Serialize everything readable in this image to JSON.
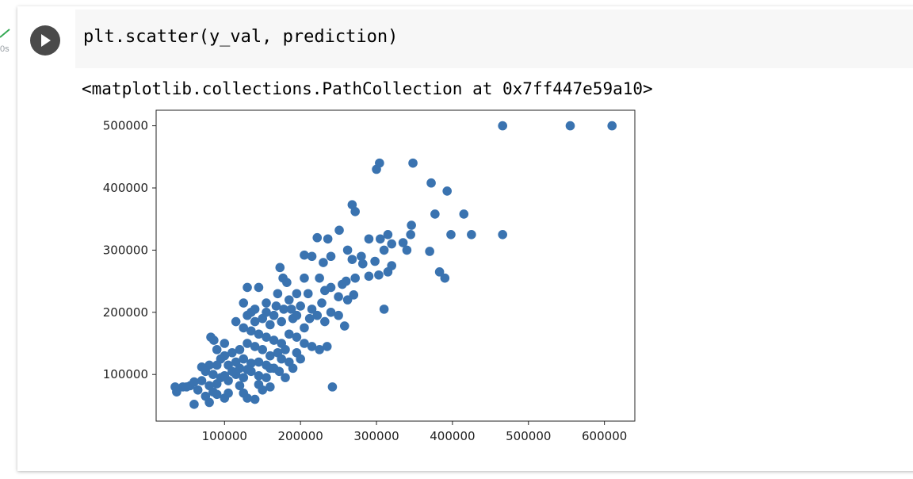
{
  "cell": {
    "code": "plt.scatter(y_val, prediction)",
    "output": "<matplotlib.collections.PathCollection at 0x7ff447e59a10>",
    "exec_time": "0s"
  },
  "icons": {
    "run": "play-icon",
    "status": "check-icon"
  },
  "colors": {
    "marker": "#3a73b0",
    "check": "#34a853",
    "run_button": "#4a4a4a"
  },
  "chart_data": {
    "type": "scatter",
    "xlim": [
      10000,
      640000
    ],
    "ylim": [
      25000,
      525000
    ],
    "x_ticks": [
      100000,
      200000,
      300000,
      400000,
      500000,
      600000
    ],
    "y_ticks": [
      100000,
      200000,
      300000,
      400000,
      500000
    ],
    "x_tick_labels": [
      "100000",
      "200000",
      "300000",
      "400000",
      "500000",
      "600000"
    ],
    "y_tick_labels": [
      "100000",
      "200000",
      "300000",
      "400000",
      "500000"
    ],
    "grid": false,
    "points": [
      [
        466000,
        500000
      ],
      [
        555000,
        500000
      ],
      [
        610000,
        500000
      ],
      [
        304000,
        440000
      ],
      [
        348000,
        440000
      ],
      [
        300000,
        430000
      ],
      [
        372000,
        408000
      ],
      [
        393000,
        395000
      ],
      [
        268000,
        373000
      ],
      [
        272000,
        362000
      ],
      [
        377000,
        358000
      ],
      [
        415000,
        358000
      ],
      [
        346000,
        340000
      ],
      [
        251000,
        332000
      ],
      [
        236000,
        318000
      ],
      [
        398000,
        325000
      ],
      [
        425000,
        325000
      ],
      [
        466000,
        325000
      ],
      [
        345000,
        325000
      ],
      [
        315000,
        325000
      ],
      [
        290000,
        318000
      ],
      [
        305000,
        318000
      ],
      [
        320000,
        310000
      ],
      [
        335000,
        312000
      ],
      [
        340000,
        300000
      ],
      [
        310000,
        300000
      ],
      [
        262000,
        300000
      ],
      [
        280000,
        290000
      ],
      [
        370000,
        298000
      ],
      [
        222000,
        320000
      ],
      [
        205000,
        292000
      ],
      [
        215000,
        290000
      ],
      [
        240000,
        290000
      ],
      [
        230000,
        280000
      ],
      [
        268000,
        285000
      ],
      [
        282000,
        278000
      ],
      [
        298000,
        282000
      ],
      [
        320000,
        275000
      ],
      [
        315000,
        265000
      ],
      [
        290000,
        258000
      ],
      [
        303000,
        260000
      ],
      [
        272000,
        255000
      ],
      [
        255000,
        245000
      ],
      [
        260000,
        250000
      ],
      [
        383000,
        265000
      ],
      [
        390000,
        255000
      ],
      [
        173000,
        272000
      ],
      [
        177000,
        255000
      ],
      [
        182000,
        248000
      ],
      [
        145000,
        240000
      ],
      [
        130000,
        240000
      ],
      [
        205000,
        255000
      ],
      [
        225000,
        255000
      ],
      [
        232000,
        235000
      ],
      [
        240000,
        240000
      ],
      [
        250000,
        225000
      ],
      [
        262000,
        220000
      ],
      [
        270000,
        228000
      ],
      [
        210000,
        230000
      ],
      [
        195000,
        230000
      ],
      [
        185000,
        220000
      ],
      [
        170000,
        230000
      ],
      [
        155000,
        215000
      ],
      [
        168000,
        210000
      ],
      [
        178000,
        205000
      ],
      [
        188000,
        205000
      ],
      [
        200000,
        210000
      ],
      [
        215000,
        205000
      ],
      [
        228000,
        215000
      ],
      [
        240000,
        200000
      ],
      [
        250000,
        195000
      ],
      [
        258000,
        178000
      ],
      [
        222000,
        195000
      ],
      [
        212000,
        190000
      ],
      [
        232000,
        185000
      ],
      [
        190000,
        190000
      ],
      [
        175000,
        185000
      ],
      [
        160000,
        180000
      ],
      [
        150000,
        190000
      ],
      [
        140000,
        185000
      ],
      [
        130000,
        195000
      ],
      [
        115000,
        185000
      ],
      [
        125000,
        175000
      ],
      [
        135000,
        170000
      ],
      [
        145000,
        165000
      ],
      [
        155000,
        160000
      ],
      [
        165000,
        155000
      ],
      [
        175000,
        150000
      ],
      [
        185000,
        165000
      ],
      [
        195000,
        160000
      ],
      [
        205000,
        150000
      ],
      [
        215000,
        145000
      ],
      [
        225000,
        140000
      ],
      [
        235000,
        145000
      ],
      [
        180000,
        140000
      ],
      [
        170000,
        135000
      ],
      [
        160000,
        130000
      ],
      [
        150000,
        140000
      ],
      [
        140000,
        145000
      ],
      [
        130000,
        150000
      ],
      [
        120000,
        140000
      ],
      [
        110000,
        135000
      ],
      [
        100000,
        130000
      ],
      [
        95000,
        125000
      ],
      [
        105000,
        115000
      ],
      [
        115000,
        120000
      ],
      [
        125000,
        125000
      ],
      [
        135000,
        118000
      ],
      [
        145000,
        120000
      ],
      [
        155000,
        115000
      ],
      [
        165000,
        110000
      ],
      [
        175000,
        125000
      ],
      [
        185000,
        120000
      ],
      [
        190000,
        110000
      ],
      [
        195000,
        135000
      ],
      [
        200000,
        125000
      ],
      [
        82000,
        160000
      ],
      [
        86000,
        155000
      ],
      [
        100000,
        150000
      ],
      [
        90000,
        140000
      ],
      [
        80000,
        115000
      ],
      [
        90000,
        115000
      ],
      [
        70000,
        112000
      ],
      [
        75000,
        105000
      ],
      [
        85000,
        100000
      ],
      [
        95000,
        95000
      ],
      [
        105000,
        90000
      ],
      [
        115000,
        100000
      ],
      [
        125000,
        95000
      ],
      [
        135000,
        105000
      ],
      [
        145000,
        98000
      ],
      [
        155000,
        95000
      ],
      [
        160000,
        110000
      ],
      [
        172000,
        105000
      ],
      [
        180000,
        95000
      ],
      [
        120000,
        110000
      ],
      [
        130000,
        108000
      ],
      [
        110000,
        105000
      ],
      [
        100000,
        98000
      ],
      [
        90000,
        85000
      ],
      [
        80000,
        82000
      ],
      [
        70000,
        90000
      ],
      [
        60000,
        88000
      ],
      [
        65000,
        75000
      ],
      [
        55000,
        82000
      ],
      [
        45000,
        80000
      ],
      [
        35000,
        80000
      ],
      [
        37000,
        72000
      ],
      [
        50000,
        80000
      ],
      [
        85000,
        72000
      ],
      [
        90000,
        68000
      ],
      [
        100000,
        62000
      ],
      [
        105000,
        70000
      ],
      [
        125000,
        70000
      ],
      [
        130000,
        62000
      ],
      [
        140000,
        60000
      ],
      [
        150000,
        75000
      ],
      [
        160000,
        80000
      ],
      [
        75000,
        65000
      ],
      [
        60000,
        52000
      ],
      [
        80000,
        55000
      ],
      [
        242000,
        80000
      ],
      [
        310000,
        205000
      ],
      [
        145000,
        84000
      ],
      [
        120000,
        82000
      ],
      [
        205000,
        175000
      ],
      [
        195000,
        195000
      ],
      [
        165000,
        195000
      ],
      [
        155000,
        200000
      ],
      [
        140000,
        205000
      ],
      [
        135000,
        200000
      ],
      [
        125000,
        215000
      ]
    ]
  }
}
